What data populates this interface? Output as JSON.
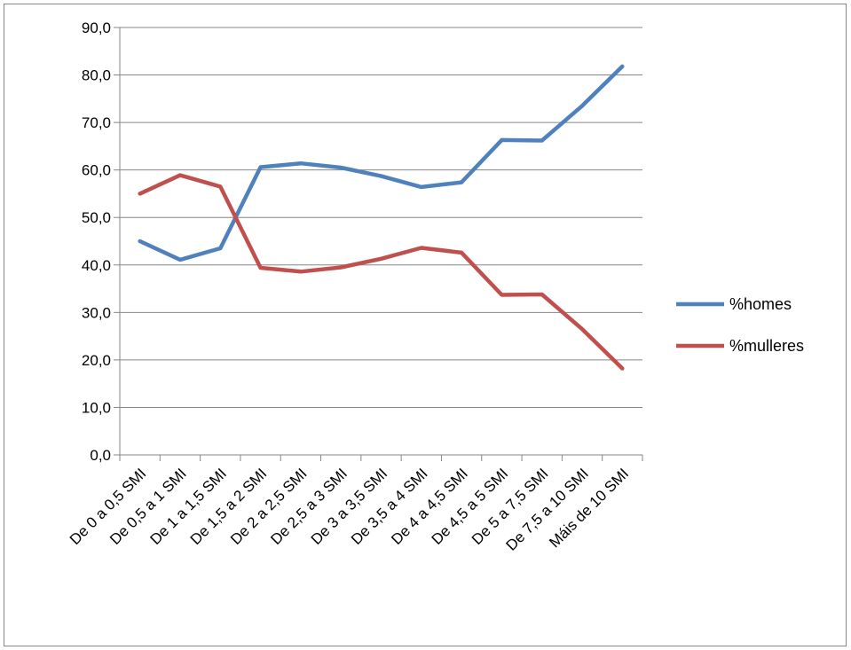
{
  "chart_data": {
    "type": "line",
    "title": "",
    "xlabel": "",
    "ylabel": "",
    "ylim": [
      0,
      90
    ],
    "ytick_step": 10,
    "ytick_labels": [
      "0,0",
      "10,0",
      "20,0",
      "30,0",
      "40,0",
      "50,0",
      "60,0",
      "70,0",
      "80,0",
      "90,0"
    ],
    "grid": "horizontal",
    "legend_position": "right",
    "categories": [
      "De 0 a 0,5 SMI",
      "De 0,5 a 1 SMI",
      "De 1 a 1,5 SMI",
      "De 1,5 a 2 SMI",
      "De 2 a 2,5 SMI",
      "De 2,5 a 3 SMI",
      "De 3 a 3,5 SMI",
      "De 3,5 a 4 SMI",
      "De 4 a 4,5 SMI",
      "De 4,5 a 5 SMI",
      "De 5 a 7,5 SMI",
      "De 7,5 a 10 SMI",
      "Máis de 10 SMI"
    ],
    "series": [
      {
        "name": "%homes",
        "color": "#4F81BD",
        "values": [
          45.0,
          41.1,
          43.5,
          60.6,
          61.4,
          60.5,
          58.7,
          56.4,
          57.4,
          66.3,
          66.2,
          73.5,
          81.8
        ]
      },
      {
        "name": "%mulleres",
        "color": "#C0504D",
        "values": [
          55.0,
          58.9,
          56.5,
          39.4,
          38.6,
          39.5,
          41.3,
          43.6,
          42.6,
          33.7,
          33.8,
          26.5,
          18.2
        ]
      }
    ]
  }
}
